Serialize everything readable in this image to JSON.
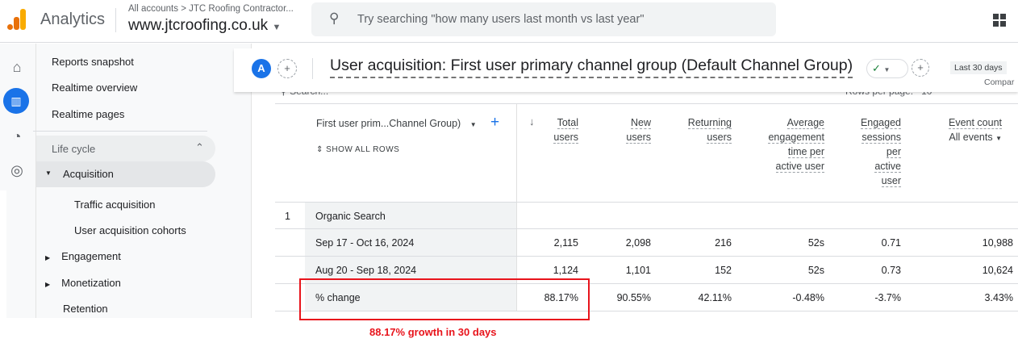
{
  "topbar": {
    "app_name": "Analytics",
    "breadcrumb": "All accounts > JTC Roofing Contractor...",
    "property": "www.jtcroofing.co.uk",
    "search_placeholder": "Try searching \"how many users last month vs last year\""
  },
  "rail": [
    "home-icon",
    "reports-icon",
    "explore-icon",
    "advertising-icon"
  ],
  "nav": {
    "items": [
      "Reports snapshot",
      "Realtime overview",
      "Realtime pages"
    ],
    "section": "Life cycle",
    "active": "Acquisition",
    "subitems": [
      "Traffic acquisition",
      "User acquisition cohorts"
    ],
    "groups": [
      "Engagement",
      "Monetization",
      "Retention"
    ]
  },
  "header": {
    "avatar": "A",
    "title": "User acquisition: First user primary channel group (Default Channel Group)",
    "date_range": "Last 30 days",
    "compare": "Compar",
    "search": "Search...",
    "rows_per_page": "Rows per page:",
    "rows_value": "10"
  },
  "table": {
    "dimension": "First user prim...Channel Group)",
    "show_all": "SHOW ALL ROWS",
    "columns": [
      [
        "Total",
        "users"
      ],
      [
        "New",
        "users"
      ],
      [
        "Returning",
        "users"
      ],
      [
        "Average",
        "engagement",
        "time per",
        "active user"
      ],
      [
        "Engaged",
        "sessions",
        "per",
        "active",
        "user"
      ],
      [
        "Event count"
      ]
    ],
    "event_filter": "All events",
    "rows": [
      {
        "num": "1",
        "label": "Organic Search",
        "values": []
      },
      {
        "num": "",
        "label": "Sep 17 - Oct 16, 2024",
        "values": [
          "2,115",
          "2,098",
          "216",
          "52s",
          "0.71",
          "10,988"
        ]
      },
      {
        "num": "",
        "label": "Aug 20 - Sep 18, 2024",
        "values": [
          "1,124",
          "1,101",
          "152",
          "52s",
          "0.73",
          "10,624"
        ]
      },
      {
        "num": "",
        "label": "% change",
        "values": [
          "88.17%",
          "90.55%",
          "42.11%",
          "-0.48%",
          "-3.7%",
          "3.43%"
        ]
      }
    ]
  },
  "annotation": {
    "text": "88.17% growth in 30 days",
    "color": "#e8141c"
  }
}
